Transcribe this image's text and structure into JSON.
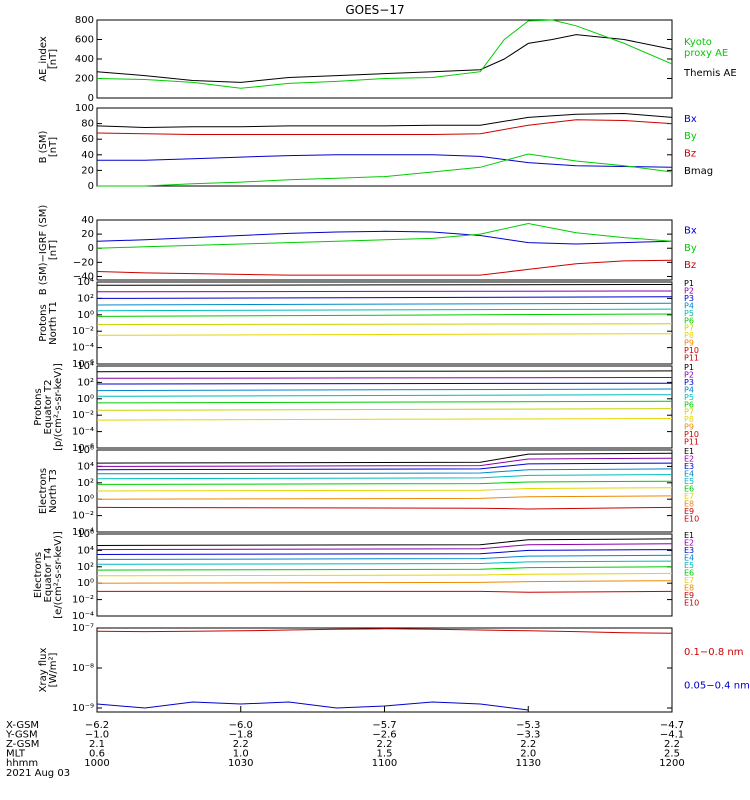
{
  "title": "GOES−17",
  "colors": {
    "black": "#000000",
    "green": "#00cc00",
    "blue": "#0000cc",
    "red": "#cc0000",
    "cyan": "#00bbbb",
    "yellow": "#e6d600",
    "orange": "#ee8800",
    "purple": "#8800aa"
  },
  "chart_data": [
    {
      "type": "line",
      "ylabel": "AE_index\n[nT]",
      "ylim": [
        0,
        800
      ],
      "yticks": [
        "0",
        "200",
        "400",
        "600",
        "800"
      ],
      "legend": [
        "Kyoto\nproxy AE",
        "Themis AE"
      ],
      "legend_colors": [
        "#00cc00",
        "#000000"
      ],
      "x": [
        "1000",
        "1010",
        "1020",
        "1030",
        "1040",
        "1050",
        "1100",
        "1110",
        "1120",
        "1125",
        "1130",
        "1135",
        "1140",
        "1150",
        "1200"
      ],
      "series": [
        {
          "name": "Themis AE",
          "color": "#000000",
          "values": [
            270,
            230,
            180,
            160,
            210,
            230,
            250,
            270,
            290,
            400,
            560,
            600,
            650,
            600,
            500
          ]
        },
        {
          "name": "Kyoto proxy AE",
          "color": "#00cc00",
          "values": [
            200,
            190,
            160,
            100,
            150,
            170,
            200,
            210,
            270,
            600,
            790,
            800,
            740,
            560,
            350
          ]
        }
      ]
    },
    {
      "type": "line",
      "ylabel": "B (SM)\n[nT]",
      "ylim": [
        0,
        100
      ],
      "yticks": [
        "0",
        "20",
        "40",
        "60",
        "80",
        "100"
      ],
      "legend": [
        "Bx",
        "By",
        "Bz",
        "Bmag"
      ],
      "legend_colors": [
        "#0000cc",
        "#00cc00",
        "#cc0000",
        "#000000"
      ],
      "x": [
        "1000",
        "1010",
        "1020",
        "1030",
        "1040",
        "1050",
        "1100",
        "1110",
        "1120",
        "1130",
        "1140",
        "1150",
        "1200"
      ],
      "series": [
        {
          "name": "Bmag",
          "color": "#000000",
          "values": [
            77,
            75,
            76,
            76,
            77,
            77,
            77,
            78,
            78,
            88,
            92,
            93,
            88
          ]
        },
        {
          "name": "Bz",
          "color": "#cc0000",
          "values": [
            68,
            67,
            66,
            66,
            66,
            66,
            66,
            66,
            67,
            78,
            85,
            84,
            80
          ]
        },
        {
          "name": "Bx",
          "color": "#0000cc",
          "values": [
            33,
            33,
            35,
            37,
            39,
            40,
            40,
            40,
            38,
            30,
            26,
            25,
            24
          ]
        },
        {
          "name": "By",
          "color": "#00cc00",
          "values": [
            0,
            0,
            3,
            5,
            8,
            10,
            12,
            18,
            24,
            41,
            32,
            26,
            18
          ]
        }
      ]
    },
    {
      "type": "line",
      "ylabel": "B (SM)−IGRF (SM)\n[nT]",
      "ylim": [
        -45,
        40
      ],
      "yticks": [
        "−40",
        "−20",
        "0",
        "20",
        "40"
      ],
      "legend": [
        "Bx",
        "By",
        "Bz"
      ],
      "legend_colors": [
        "#0000cc",
        "#00cc00",
        "#cc0000"
      ],
      "x": [
        "1000",
        "1010",
        "1020",
        "1030",
        "1040",
        "1050",
        "1100",
        "1110",
        "1120",
        "1130",
        "1140",
        "1150",
        "1200"
      ],
      "series": [
        {
          "name": "Bx",
          "color": "#0000cc",
          "values": [
            10,
            12,
            15,
            18,
            21,
            23,
            24,
            23,
            18,
            8,
            6,
            8,
            10
          ]
        },
        {
          "name": "By",
          "color": "#00cc00",
          "values": [
            0,
            2,
            4,
            6,
            8,
            10,
            12,
            14,
            20,
            35,
            22,
            15,
            10
          ]
        },
        {
          "name": "Bz",
          "color": "#cc0000",
          "values": [
            -33,
            -35,
            -36,
            -37,
            -38,
            -38,
            -38,
            -38,
            -38,
            -30,
            -22,
            -18,
            -17
          ]
        }
      ]
    },
    {
      "type": "line",
      "ylabel": "Protons\nNorth T1",
      "ylog": true,
      "ylim_exp": [
        -6,
        4
      ],
      "yticks": [
        "10⁻⁶",
        "10⁻⁴",
        "10⁻²",
        "10⁰",
        "10²",
        "10⁴"
      ],
      "legend": [
        "P1",
        "P2",
        "P3",
        "P4",
        "P5",
        "P6",
        "P7",
        "P8",
        "P9",
        "P10",
        "P11"
      ],
      "legend_colors": [
        "#000000",
        "#8800aa",
        "#0000cc",
        "#0088cc",
        "#00bbbb",
        "#00cc00",
        "#c8d400",
        "#e6d600",
        "#ee8800",
        "#cc0000",
        "#cc0000"
      ],
      "x": [
        "1000",
        "1200"
      ],
      "series": [
        {
          "name": "P1",
          "color": "#000000",
          "values": [
            3.6,
            3.7
          ]
        },
        {
          "name": "P2",
          "color": "#8800aa",
          "values": [
            2.8,
            2.9
          ]
        },
        {
          "name": "P3",
          "color": "#0000cc",
          "values": [
            2.0,
            2.2
          ]
        },
        {
          "name": "P4",
          "color": "#0088cc",
          "values": [
            1.2,
            1.4
          ]
        },
        {
          "name": "P5",
          "color": "#00bbbb",
          "values": [
            0.5,
            0.7
          ]
        },
        {
          "name": "P6",
          "color": "#00cc00",
          "values": [
            -0.2,
            0.1
          ]
        },
        {
          "name": "P7",
          "color": "#c8d400",
          "values": [
            -1.2,
            -1.1
          ]
        },
        {
          "name": "P8",
          "color": "#e6d600",
          "values": [
            -2.5,
            -2.3
          ]
        }
      ]
    },
    {
      "type": "line",
      "ylabel": "Protons\nEquator T2\n[p/(cm²-s-sr-keV)]",
      "ylog": true,
      "ylim_exp": [
        -6,
        4
      ],
      "yticks": [
        "10⁻⁶",
        "10⁻⁴",
        "10⁻²",
        "10⁰",
        "10²",
        "10⁴"
      ],
      "legend": [
        "P1",
        "P2",
        "P3",
        "P4",
        "P5",
        "P6",
        "P7",
        "P8",
        "P9",
        "P10",
        "P11"
      ],
      "legend_colors": [
        "#000000",
        "#8800aa",
        "#0000cc",
        "#0088cc",
        "#00bbbb",
        "#00cc00",
        "#c8d400",
        "#e6d600",
        "#ee8800",
        "#cc0000",
        "#cc0000"
      ],
      "x": [
        "1000",
        "1200"
      ],
      "series": [
        {
          "name": "P1",
          "color": "#000000",
          "values": [
            3.3,
            3.4
          ]
        },
        {
          "name": "P2",
          "color": "#8800aa",
          "values": [
            2.5,
            2.6
          ]
        },
        {
          "name": "P3",
          "color": "#0000cc",
          "values": [
            1.8,
            1.9
          ]
        },
        {
          "name": "P4",
          "color": "#0088cc",
          "values": [
            1.0,
            1.2
          ]
        },
        {
          "name": "P5",
          "color": "#00bbbb",
          "values": [
            0.3,
            0.5
          ]
        },
        {
          "name": "P6",
          "color": "#00cc00",
          "values": [
            -0.5,
            -0.3
          ]
        },
        {
          "name": "P7",
          "color": "#c8d400",
          "values": [
            -1.4,
            -1.2
          ]
        },
        {
          "name": "P8",
          "color": "#e6d600",
          "values": [
            -2.6,
            -2.4
          ]
        }
      ]
    },
    {
      "type": "line",
      "ylabel": "Electrons\nNorth T3",
      "ylog": true,
      "ylim_exp": [
        -4,
        6
      ],
      "yticks": [
        "10⁻⁴",
        "10⁻²",
        "10⁰",
        "10²",
        "10⁴",
        "10⁶"
      ],
      "legend": [
        "E1",
        "E2",
        "E3",
        "E4",
        "E5",
        "E6",
        "E7",
        "E8",
        "E9",
        "E10"
      ],
      "legend_colors": [
        "#000000",
        "#8800aa",
        "#0000cc",
        "#0088cc",
        "#00bbbb",
        "#00cc00",
        "#e6d600",
        "#ee8800",
        "#cc0000",
        "#cc0000"
      ],
      "x": [
        "1000",
        "1120",
        "1130",
        "1200"
      ],
      "series": [
        {
          "name": "E1",
          "color": "#000000",
          "values": [
            4.4,
            4.5,
            5.5,
            5.6
          ]
        },
        {
          "name": "E2",
          "color": "#8800aa",
          "values": [
            4.0,
            4.1,
            4.9,
            5.0
          ]
        },
        {
          "name": "E3",
          "color": "#0000cc",
          "values": [
            3.6,
            3.7,
            4.3,
            4.4
          ]
        },
        {
          "name": "E4",
          "color": "#0088cc",
          "values": [
            3.1,
            3.2,
            3.6,
            3.7
          ]
        },
        {
          "name": "E5",
          "color": "#00bbbb",
          "values": [
            2.5,
            2.6,
            2.9,
            3.0
          ]
        },
        {
          "name": "E6",
          "color": "#00cc00",
          "values": [
            1.8,
            1.9,
            2.1,
            2.2
          ]
        },
        {
          "name": "E7",
          "color": "#e6d600",
          "values": [
            1.0,
            1.1,
            1.3,
            1.4
          ]
        },
        {
          "name": "E8",
          "color": "#ee8800",
          "values": [
            0.0,
            0.1,
            0.3,
            0.4
          ]
        },
        {
          "name": "E9",
          "color": "#cc0000",
          "values": [
            -1.0,
            -1.1,
            -1.2,
            -1.0
          ]
        }
      ]
    },
    {
      "type": "line",
      "ylabel": "Electrons\nEquator T4\n[e/(cm²-s-sr-keV)]",
      "ylog": true,
      "ylim_exp": [
        -4,
        6
      ],
      "yticks": [
        "10⁻⁴",
        "10⁻²",
        "10⁰",
        "10²",
        "10⁴",
        "10⁶"
      ],
      "legend": [
        "E1",
        "E2",
        "E3",
        "E4",
        "E5",
        "E6",
        "E7",
        "E8",
        "E9",
        "E10"
      ],
      "legend_colors": [
        "#000000",
        "#8800aa",
        "#0000cc",
        "#0088cc",
        "#00bbbb",
        "#00cc00",
        "#e6d600",
        "#ee8800",
        "#cc0000",
        "#cc0000"
      ],
      "x": [
        "1000",
        "1120",
        "1130",
        "1200"
      ],
      "series": [
        {
          "name": "E1",
          "color": "#000000",
          "values": [
            4.6,
            4.7,
            5.3,
            5.4
          ]
        },
        {
          "name": "E2",
          "color": "#8800aa",
          "values": [
            4.1,
            4.2,
            4.7,
            4.8
          ]
        },
        {
          "name": "E3",
          "color": "#0000cc",
          "values": [
            3.5,
            3.6,
            4.0,
            4.1
          ]
        },
        {
          "name": "E4",
          "color": "#0088cc",
          "values": [
            2.9,
            3.0,
            3.3,
            3.4
          ]
        },
        {
          "name": "E5",
          "color": "#00bbbb",
          "values": [
            2.3,
            2.4,
            2.6,
            2.7
          ]
        },
        {
          "name": "E6",
          "color": "#00cc00",
          "values": [
            1.6,
            1.7,
            1.9,
            2.0
          ]
        },
        {
          "name": "E7",
          "color": "#e6d600",
          "values": [
            0.9,
            1.0,
            1.1,
            1.2
          ]
        },
        {
          "name": "E8",
          "color": "#ee8800",
          "values": [
            0.0,
            0.1,
            0.2,
            0.3
          ]
        },
        {
          "name": "E9",
          "color": "#cc0000",
          "values": [
            -1.0,
            -1.0,
            -1.1,
            -1.0
          ]
        }
      ]
    },
    {
      "type": "line",
      "ylabel": "Xray flux\n[W/m²]",
      "ylog": true,
      "ylim_exp": [
        -9.1,
        -7
      ],
      "yticks": [
        "10⁻⁹",
        "10⁻⁸",
        "10⁻⁷"
      ],
      "legend": [
        "0.1−0.8 nm",
        "0.05−0.4 nm"
      ],
      "legend_colors": [
        "#cc0000",
        "#0000cc"
      ],
      "x": [
        "1000",
        "1010",
        "1020",
        "1030",
        "1040",
        "1050",
        "1100",
        "1110",
        "1120",
        "1130",
        "1140",
        "1150",
        "1200"
      ],
      "series": [
        {
          "name": "0.1−0.8 nm",
          "color": "#cc0000",
          "values": [
            -7.08,
            -7.09,
            -7.08,
            -7.07,
            -7.05,
            -7.03,
            -7.02,
            -7.03,
            -7.05,
            -7.07,
            -7.09,
            -7.12,
            -7.13
          ]
        },
        {
          "name": "0.05−0.4 nm",
          "color": "#0000cc",
          "values": [
            -8.9,
            -9.0,
            -8.85,
            -8.9,
            -8.85,
            -9.0,
            -8.95,
            -8.85,
            -8.9,
            -9.05,
            null,
            null,
            null
          ]
        }
      ]
    }
  ],
  "xaxis": {
    "ticks": [
      "1000",
      "1030",
      "1100",
      "1130",
      "1200"
    ],
    "rows": [
      {
        "label": "X-GSM",
        "values": [
          "−6.2",
          "−6.0",
          "−5.7",
          "−5.3",
          "−4.7"
        ]
      },
      {
        "label": "Y-GSM",
        "values": [
          "−1.0",
          "−1.8",
          "−2.6",
          "−3.3",
          "−4.1"
        ]
      },
      {
        "label": "Z-GSM",
        "values": [
          "2.1",
          "2.2",
          "2.2",
          "2.2",
          "2.2"
        ]
      },
      {
        "label": "MLT",
        "values": [
          "0.6",
          "1.0",
          "1.5",
          "2.0",
          "2.5"
        ]
      },
      {
        "label": "hhmm",
        "values": [
          "1000",
          "1030",
          "1100",
          "1130",
          "1200"
        ]
      }
    ],
    "date": "2021 Aug 03"
  }
}
